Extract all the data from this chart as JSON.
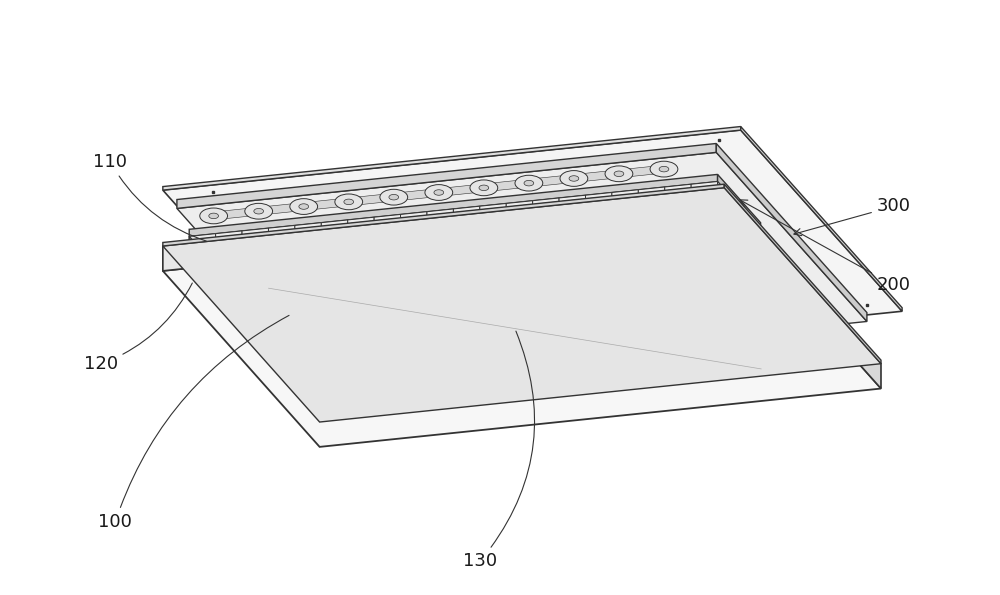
{
  "background_color": "#ffffff",
  "line_color": "#333333",
  "figsize": [
    10.0,
    5.95
  ],
  "dpi": 100,
  "annotation_fontsize": 13
}
